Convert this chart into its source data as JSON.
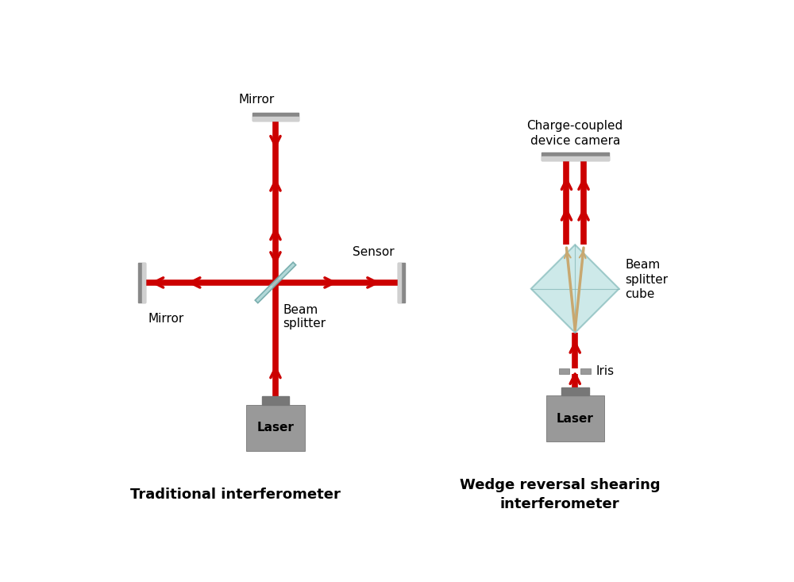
{
  "bg_color": "#ffffff",
  "red_color": "#cc0000",
  "gray_color": "#999999",
  "dark_gray": "#6a6a6a",
  "light_gray": "#bbbbbb",
  "mirror_color": "#c0c0c0",
  "bs_color": "#aad4d4",
  "wedge_color": "#b8e0e0",
  "tan_color": "#c8a870",
  "title_left": "Traditional interferometer",
  "title_right": "Wedge reversal shearing\ninterferometer",
  "label_mirror_top": "Mirror",
  "label_mirror_left": "Mirror",
  "label_sensor": "Sensor",
  "label_beam_splitter": "Beam\nsplitter",
  "label_laser_left": "Laser",
  "label_laser_right": "Laser",
  "label_ccd": "Charge-coupled\ndevice camera",
  "label_bsc": "Beam\nsplitter\ncube",
  "label_iris": "Iris"
}
